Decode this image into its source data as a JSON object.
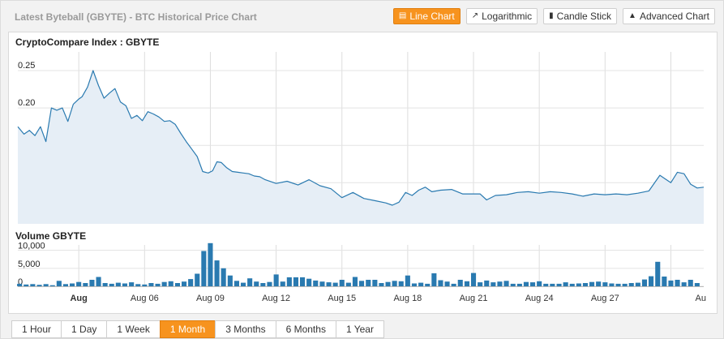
{
  "header": {
    "title": "Latest Byteball (GBYTE) - BTC Historical Price Chart"
  },
  "chart_types": [
    {
      "label": "Line Chart",
      "icon": "area-chart-icon",
      "active": true
    },
    {
      "label": "Logarithmic",
      "icon": "log-chart-icon",
      "active": false
    },
    {
      "label": "Candle Stick",
      "icon": "candlestick-icon",
      "active": false
    },
    {
      "label": "Advanced Chart",
      "icon": "advanced-chart-icon",
      "active": false
    }
  ],
  "ranges": [
    {
      "label": "1 Hour",
      "active": false
    },
    {
      "label": "1 Day",
      "active": false
    },
    {
      "label": "1 Week",
      "active": false
    },
    {
      "label": "1 Month",
      "active": true
    },
    {
      "label": "3 Months",
      "active": false
    },
    {
      "label": "6 Months",
      "active": false
    },
    {
      "label": "1 Year",
      "active": false
    }
  ],
  "colors": {
    "accent": "#f7931e",
    "line": "#2a7ab0",
    "fill": "#e6eef6",
    "bar": "#2a7ab0"
  },
  "chart_data": [
    {
      "type": "area",
      "title": "CryptoCompare Index : GBYTE",
      "x_ticks": [
        "Aug",
        "Aug 06",
        "Aug 09",
        "Aug 12",
        "Aug 15",
        "Aug 18",
        "Aug 21",
        "Aug 24",
        "Aug 27",
        "Au"
      ],
      "x_range_days": [
        -2.78,
        28.5
      ],
      "y_ticks": [
        0.05,
        0.1,
        0.15,
        0.2,
        0.25
      ],
      "ylim": [
        0.045,
        0.275
      ],
      "grid": true,
      "x_days": [
        -2.78,
        -2.5,
        -2.25,
        -2.0,
        -1.75,
        -1.5,
        -1.25,
        -1.0,
        -0.75,
        -0.5,
        -0.25,
        0.0,
        0.15,
        0.4,
        0.65,
        0.9,
        1.15,
        1.4,
        1.65,
        1.9,
        2.15,
        2.4,
        2.65,
        2.9,
        3.15,
        3.4,
        3.65,
        3.9,
        4.15,
        4.4,
        4.65,
        4.9,
        5.15,
        5.4,
        5.65,
        5.9,
        6.1,
        6.3,
        6.5,
        6.75,
        7.0,
        7.25,
        7.5,
        7.75,
        8.0,
        8.25,
        8.5,
        9.0,
        9.5,
        10.0,
        10.5,
        11.0,
        11.5,
        12.0,
        12.5,
        13.0,
        13.5,
        14.0,
        14.3,
        14.6,
        14.9,
        15.2,
        15.5,
        15.8,
        16.1,
        16.5,
        17.0,
        17.5,
        18.0,
        18.3,
        18.6,
        19.0,
        19.5,
        20.0,
        20.5,
        21.0,
        21.5,
        22.0,
        22.5,
        23.0,
        23.5,
        24.0,
        24.5,
        25.0,
        25.5,
        26.0,
        26.5,
        26.75,
        27.0,
        27.3,
        27.6,
        27.9,
        28.2,
        28.5
      ],
      "price": [
        0.175,
        0.165,
        0.17,
        0.163,
        0.175,
        0.155,
        0.2,
        0.197,
        0.2,
        0.182,
        0.205,
        0.212,
        0.215,
        0.228,
        0.25,
        0.23,
        0.213,
        0.22,
        0.226,
        0.208,
        0.203,
        0.186,
        0.19,
        0.183,
        0.195,
        0.192,
        0.188,
        0.182,
        0.183,
        0.178,
        0.166,
        0.155,
        0.145,
        0.135,
        0.115,
        0.113,
        0.116,
        0.128,
        0.127,
        0.12,
        0.115,
        0.114,
        0.113,
        0.112,
        0.109,
        0.108,
        0.104,
        0.099,
        0.102,
        0.097,
        0.104,
        0.096,
        0.092,
        0.08,
        0.087,
        0.079,
        0.076,
        0.073,
        0.07,
        0.074,
        0.087,
        0.083,
        0.09,
        0.094,
        0.088,
        0.09,
        0.091,
        0.085,
        0.085,
        0.085,
        0.077,
        0.083,
        0.084,
        0.087,
        0.088,
        0.086,
        0.088,
        0.087,
        0.085,
        0.082,
        0.085,
        0.084,
        0.085,
        0.084,
        0.086,
        0.089,
        0.11,
        0.105,
        0.1,
        0.114,
        0.112,
        0.098,
        0.093,
        0.094
      ]
    },
    {
      "type": "bar",
      "title": "Volume GBYTE",
      "y_ticks": [
        0,
        5000,
        10000
      ],
      "y_tick_labels": [
        "0",
        "5,000",
        "10,000"
      ],
      "ylim": [
        0,
        11500
      ],
      "x_days": [
        -2.7,
        -2.4,
        -2.1,
        -1.8,
        -1.5,
        -1.2,
        -0.9,
        -0.6,
        -0.3,
        0.0,
        0.3,
        0.6,
        0.9,
        1.2,
        1.5,
        1.8,
        2.1,
        2.4,
        2.7,
        3.0,
        3.3,
        3.6,
        3.9,
        4.2,
        4.5,
        4.8,
        5.1,
        5.4,
        5.7,
        6.0,
        6.3,
        6.6,
        6.9,
        7.2,
        7.5,
        7.8,
        8.1,
        8.4,
        8.7,
        9.0,
        9.3,
        9.6,
        9.9,
        10.2,
        10.5,
        10.8,
        11.1,
        11.4,
        11.7,
        12.0,
        12.3,
        12.6,
        12.9,
        13.2,
        13.5,
        13.8,
        14.1,
        14.4,
        14.7,
        15.0,
        15.3,
        15.6,
        15.9,
        16.2,
        16.5,
        16.8,
        17.1,
        17.4,
        17.7,
        18.0,
        18.3,
        18.6,
        18.9,
        19.2,
        19.5,
        19.8,
        20.1,
        20.4,
        20.7,
        21.0,
        21.3,
        21.6,
        21.9,
        22.2,
        22.5,
        22.8,
        23.1,
        23.4,
        23.7,
        24.0,
        24.3,
        24.6,
        24.9,
        25.2,
        25.5,
        25.8,
        26.1,
        26.4,
        26.7,
        27.0,
        27.3,
        27.6,
        27.9,
        28.2
      ],
      "volume": [
        700,
        500,
        600,
        400,
        600,
        300,
        1500,
        600,
        800,
        1200,
        900,
        1800,
        2600,
        900,
        700,
        1000,
        800,
        1100,
        600,
        500,
        900,
        700,
        1200,
        1400,
        900,
        1300,
        2000,
        3500,
        9800,
        12000,
        7200,
        5000,
        3000,
        1500,
        1000,
        2200,
        1300,
        900,
        1200,
        3300,
        1300,
        2500,
        2500,
        2500,
        2100,
        1600,
        1300,
        1100,
        1000,
        1800,
        1000,
        2600,
        1500,
        1800,
        1800,
        900,
        1200,
        1500,
        1400,
        3000,
        800,
        1000,
        700,
        3600,
        1700,
        1300,
        700,
        1800,
        1400,
        3700,
        1100,
        1600,
        1100,
        1300,
        1500,
        700,
        700,
        1200,
        1100,
        1400,
        700,
        700,
        700,
        1100,
        700,
        800,
        900,
        1200,
        1300,
        1100,
        800,
        700,
        700,
        900,
        1000,
        1900,
        2800,
        6800,
        2700,
        1600,
        1800,
        1100,
        1800,
        900
      ]
    }
  ]
}
